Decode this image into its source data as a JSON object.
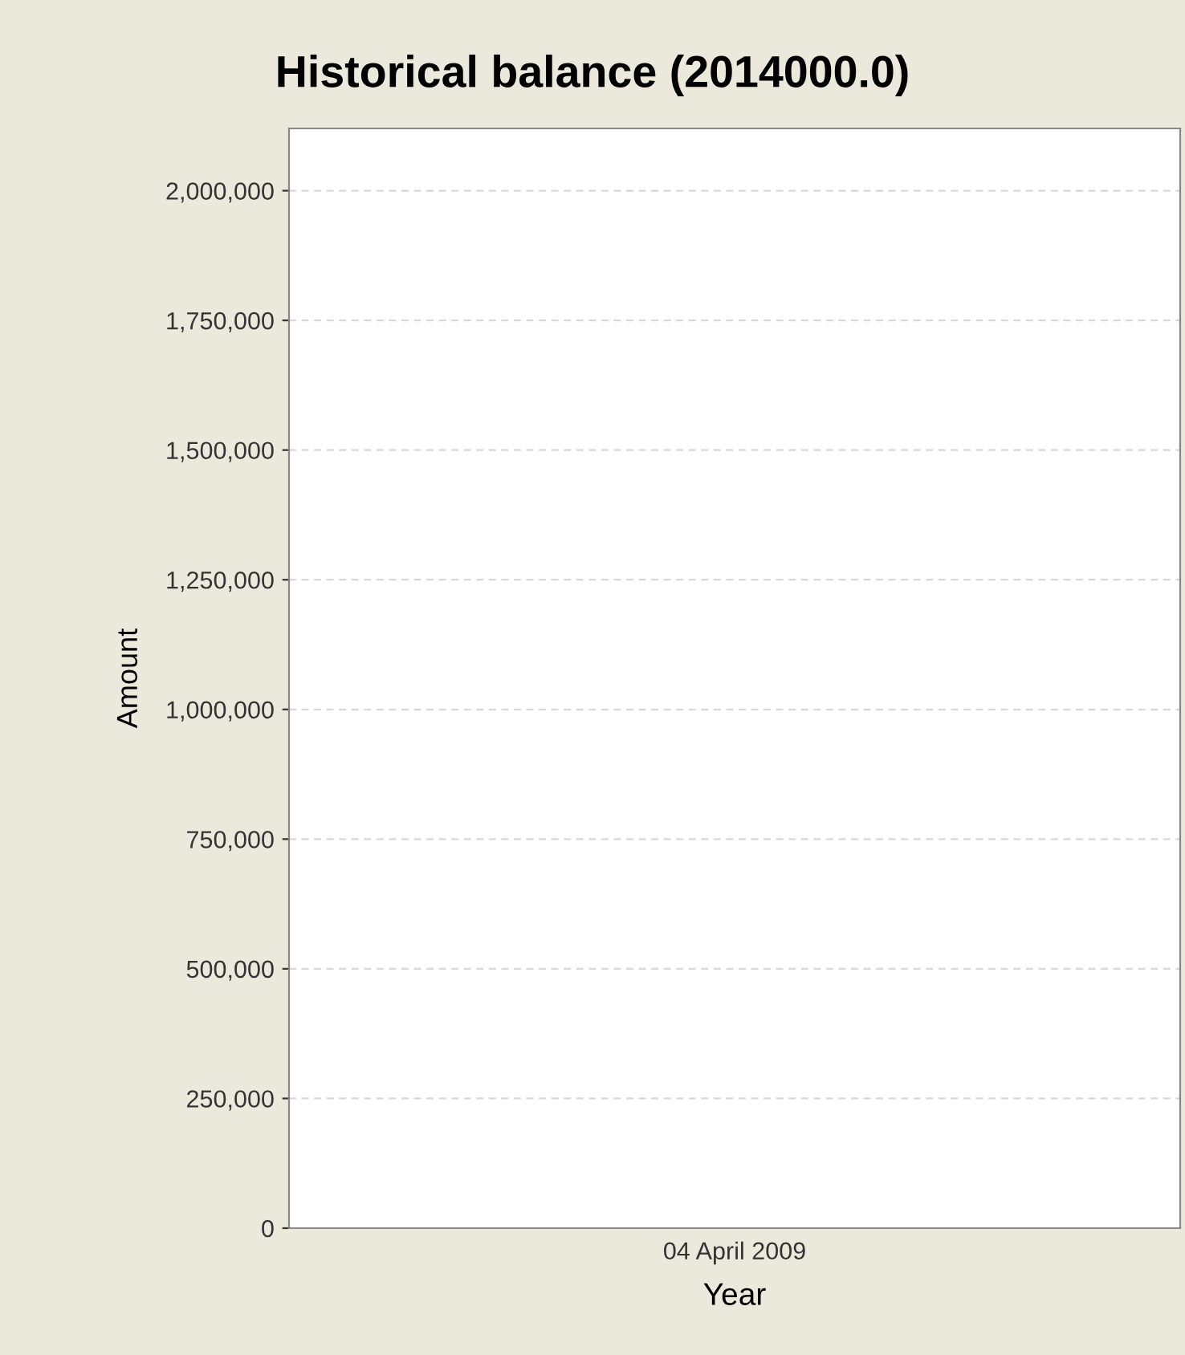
{
  "chart_data": {
    "type": "bar",
    "title": "Historical balance (2014000.0)",
    "xlabel": "Year",
    "ylabel": "Amount",
    "categories": [
      "04 April 2009"
    ],
    "values": [
      null
    ],
    "ylim": [
      0,
      2120000
    ],
    "yticks": [
      0,
      {
        "value": 250000,
        "label": "250,000"
      },
      {
        "value": 500000,
        "label": "500,000"
      },
      {
        "value": 750000,
        "label": "750,000"
      },
      {
        "value": 1000000,
        "label": "1,000,000"
      },
      {
        "value": 1250000,
        "label": "1,250,000"
      },
      {
        "value": 1500000,
        "label": "1,500,000"
      },
      {
        "value": 1750000,
        "label": "1,750,000"
      },
      {
        "value": 2000000,
        "label": "2,000,000"
      }
    ],
    "grid": "y"
  }
}
